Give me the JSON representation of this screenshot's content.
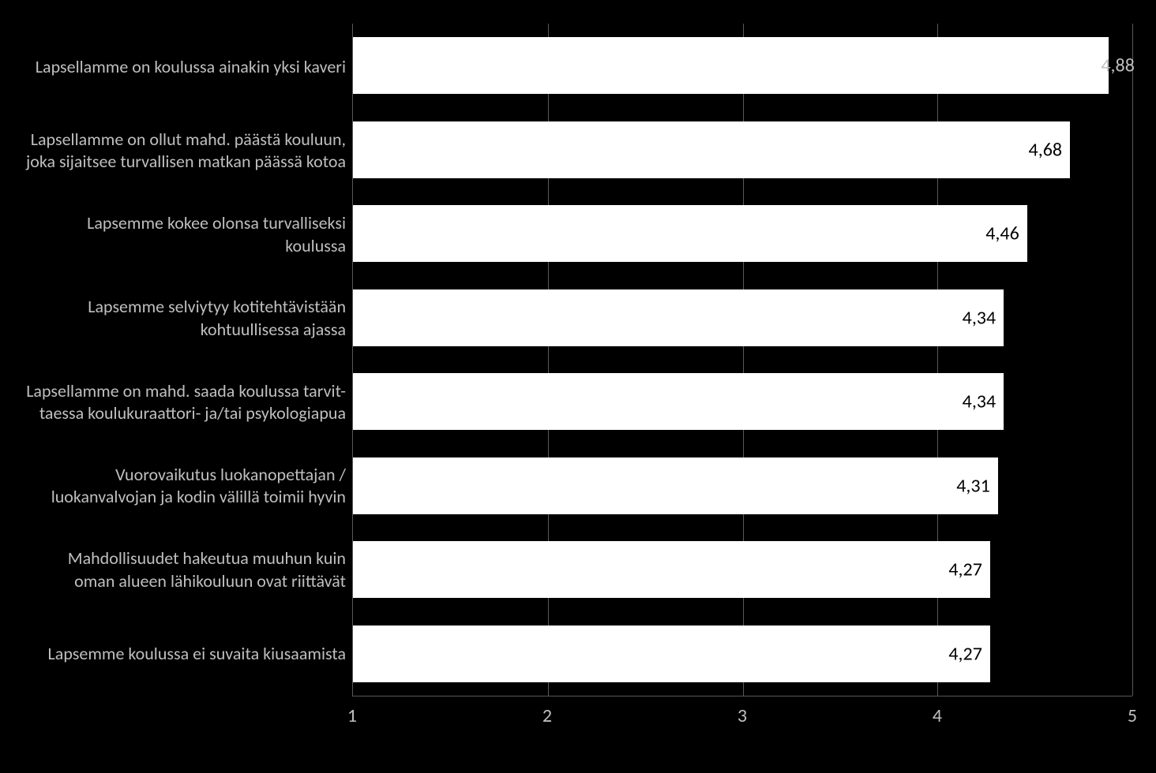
{
  "chart": {
    "type": "bar-horizontal",
    "background_color": "#000000",
    "bar_color": "#ffffff",
    "text_color": "#bfbfbf",
    "value_text_color": "#000000",
    "grid_color": "#595959",
    "label_fontsize": 22,
    "value_fontsize": 24,
    "axis_fontsize": 24,
    "xlim": [
      1,
      5
    ],
    "xtick_step": 1,
    "xticks": [
      "1",
      "2",
      "3",
      "4",
      "5"
    ],
    "bar_height_pct": 68,
    "items": [
      {
        "label": "Lapsellamme on koulussa ainakin yksi kaveri",
        "value": 4.88,
        "value_text": "4,88",
        "value_outside": true
      },
      {
        "label": "Lapsellamme on ollut mahd. päästä kouluun, joka sijaitsee turvallisen  matkan päässä kotoa",
        "value": 4.68,
        "value_text": "4,68"
      },
      {
        "label": "Lapsemme kokee olonsa turvalliseksi koulussa",
        "value": 4.46,
        "value_text": "4,46"
      },
      {
        "label": "Lapsemme selviytyy kotitehtävistään kohtuullisessa ajassa",
        "value": 4.34,
        "value_text": "4,34"
      },
      {
        "label": "Lapsellamme on mahd. saada koulussa tarvit-taessa koulukuraattori- ja/tai psykologiapua",
        "value": 4.34,
        "value_text": "4,34"
      },
      {
        "label": "Vuorovaikutus luokanopettajan / luokanvalvojan ja kodin välillä toimii hyvin",
        "value": 4.31,
        "value_text": "4,31"
      },
      {
        "label": "Mahdollisuudet hakeutua  muuhun kuin oman alueen lähikouluun ovat riittävät",
        "value": 4.27,
        "value_text": "4,27"
      },
      {
        "label": "Lapsemme  koulussa ei suvaita kiusaamista",
        "value": 4.27,
        "value_text": "4,27"
      }
    ]
  }
}
